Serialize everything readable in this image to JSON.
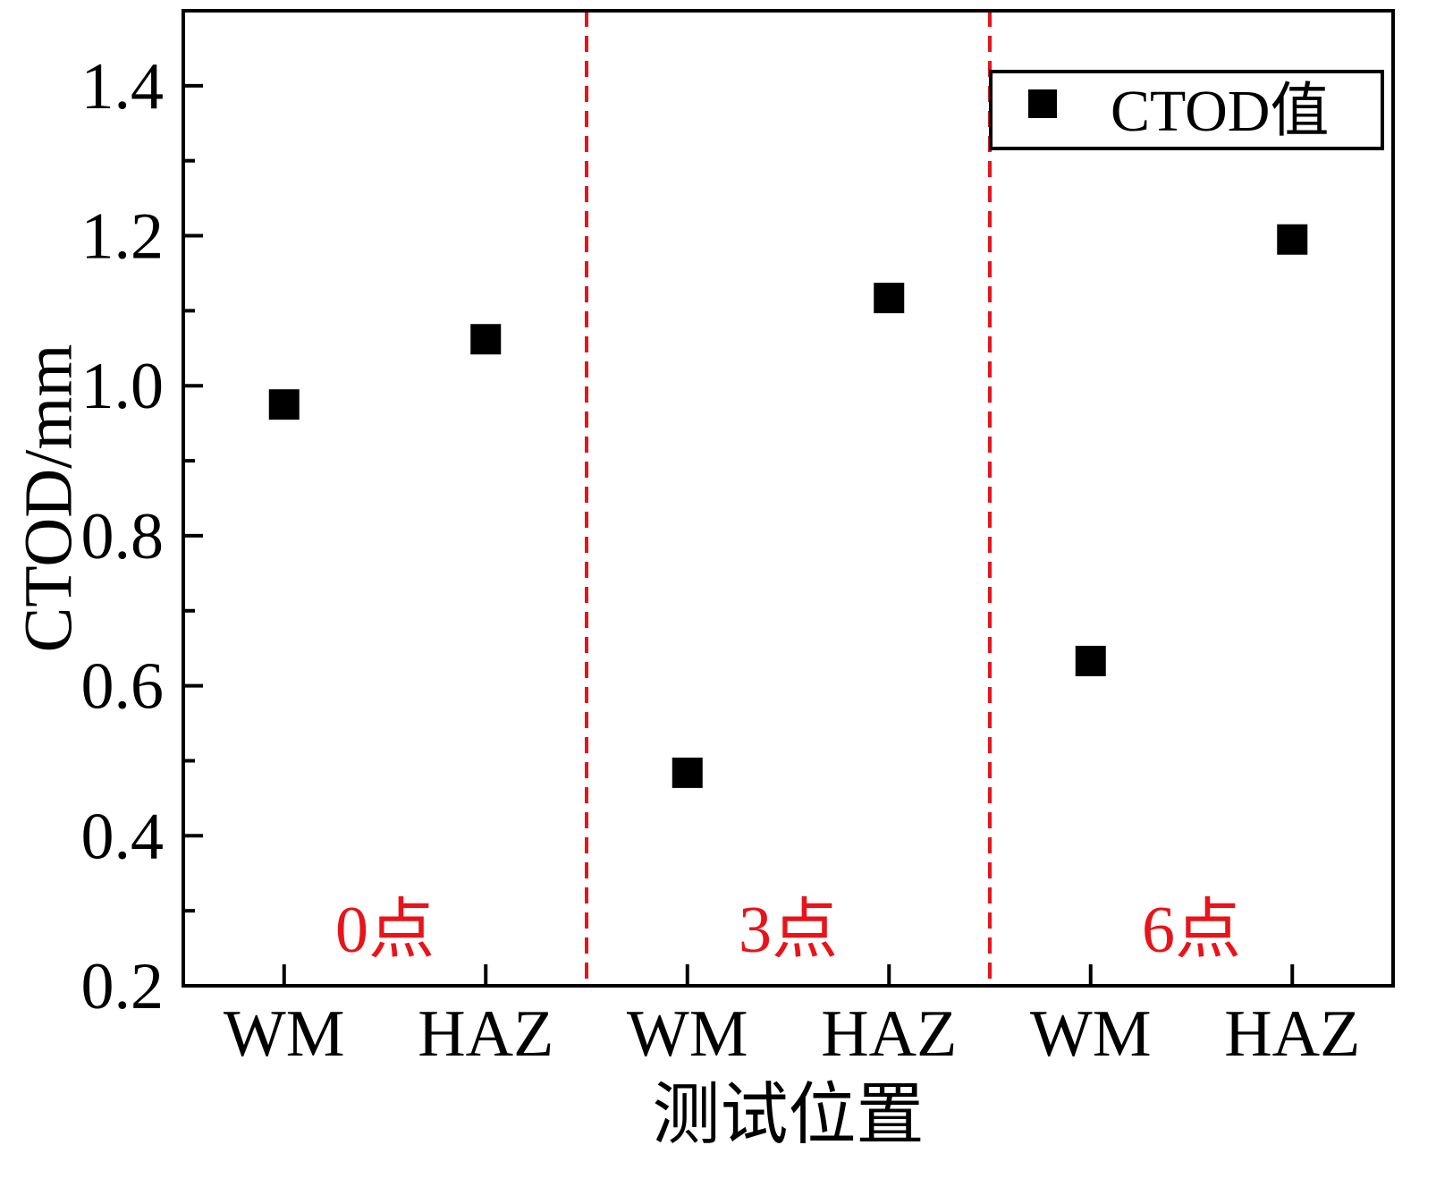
{
  "chart_data": {
    "type": "scatter",
    "xlabel": "测试位置",
    "ylabel": "CTOD/mm",
    "ylim": [
      0.2,
      1.5
    ],
    "yticks": [
      "0.2",
      "0.4",
      "0.6",
      "0.8",
      "1.0",
      "1.2",
      "1.4"
    ],
    "categories": [
      "WM",
      "HAZ",
      "WM",
      "HAZ",
      "WM",
      "HAZ"
    ],
    "series": [
      {
        "name": "CTOD值",
        "values": [
          0.975,
          1.062,
          0.484,
          1.117,
          0.633,
          1.195
        ]
      }
    ],
    "groups": [
      {
        "label": "0点",
        "categories": [
          0,
          1
        ]
      },
      {
        "label": "3点",
        "categories": [
          2,
          3
        ]
      },
      {
        "label": "6点",
        "categories": [
          4,
          5
        ]
      }
    ],
    "legend_position": "top-right",
    "grid": false,
    "colors": {
      "marker": "#000000",
      "divider": "#e8141a",
      "group_label": "#e8141a"
    }
  }
}
